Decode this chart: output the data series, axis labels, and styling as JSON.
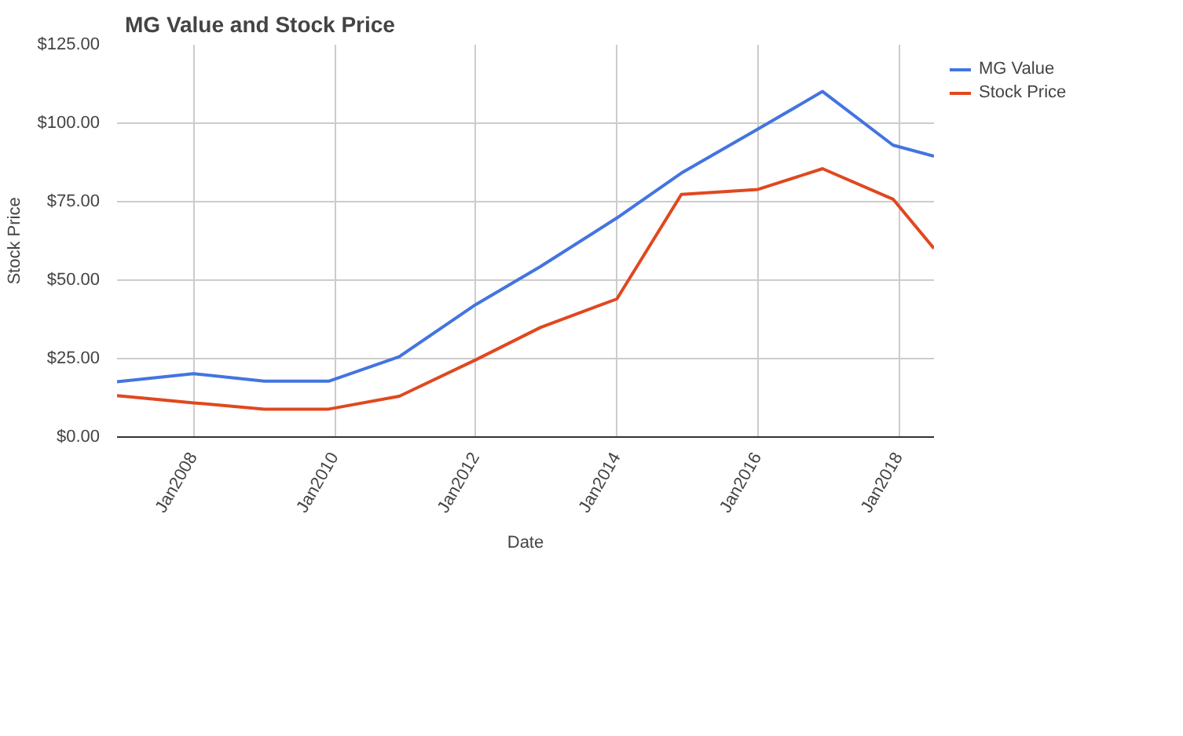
{
  "chart_data": {
    "type": "line",
    "title": "MG Value and Stock Price",
    "xlabel": "Date",
    "ylabel": "Stock Price",
    "x": [
      "2006-12",
      "2008-01",
      "2009-01",
      "2009-12",
      "2010-12",
      "2012-01",
      "2012-12",
      "2014-01",
      "2014-12",
      "2016-01",
      "2016-12",
      "2017-12",
      "2018-07"
    ],
    "series": [
      {
        "name": "MG Value",
        "color": "#4374e0",
        "values": [
          17.6,
          20.2,
          17.8,
          17.8,
          25.6,
          42.2,
          54.3,
          69.8,
          84.1,
          98.1,
          110.1,
          93.0,
          89.5
        ]
      },
      {
        "name": "Stock Price",
        "color": "#e0481f",
        "values": [
          13.2,
          10.9,
          8.9,
          8.9,
          13.0,
          24.6,
          34.9,
          44.0,
          77.3,
          78.9,
          85.5,
          75.8,
          60.1
        ]
      }
    ],
    "xlim": [
      "2006-12",
      "2018-07"
    ],
    "xticks": [
      {
        "value": "2008-01",
        "label": "Jan2008"
      },
      {
        "value": "2010-01",
        "label": "Jan2010"
      },
      {
        "value": "2012-01",
        "label": "Jan2012"
      },
      {
        "value": "2014-01",
        "label": "Jan2014"
      },
      {
        "value": "2016-01",
        "label": "Jan2016"
      },
      {
        "value": "2018-01",
        "label": "Jan2018"
      }
    ],
    "ylim": [
      0,
      125
    ],
    "yticks": [
      {
        "value": 0,
        "label": "$0.00"
      },
      {
        "value": 25,
        "label": "$25.00"
      },
      {
        "value": 50,
        "label": "$50.00"
      },
      {
        "value": 75,
        "label": "$75.00"
      },
      {
        "value": 100,
        "label": "$100.00"
      },
      {
        "value": 125,
        "label": "$125.00"
      }
    ],
    "grid": true,
    "legend": "top right",
    "line_style": "solid"
  }
}
